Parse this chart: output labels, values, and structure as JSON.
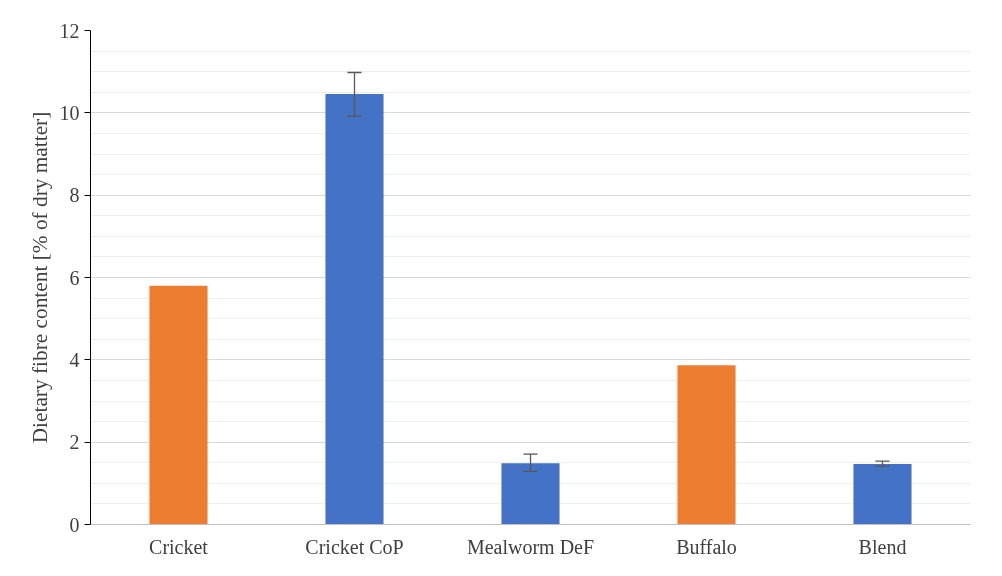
{
  "chart_data": {
    "type": "bar",
    "ylabel": "Dietary fibre content [% of dry matter]",
    "categories": [
      "Cricket",
      "Cricket CoP",
      "Mealworm DeF",
      "Buffalo",
      "Blend"
    ],
    "values": [
      5.8,
      10.46,
      1.49,
      3.87,
      1.47
    ],
    "colors": [
      "#ed7d31",
      "#4472c4",
      "#4472c4",
      "#ed7d31",
      "#4472c4"
    ],
    "errors": [
      null,
      [
        9.92,
        10.98
      ],
      [
        1.29,
        1.71
      ],
      null,
      [
        1.41,
        1.54
      ]
    ],
    "ylim": [
      0,
      12
    ],
    "yticks": [
      0,
      2,
      4,
      6,
      8,
      10,
      12
    ],
    "grid": "y"
  }
}
